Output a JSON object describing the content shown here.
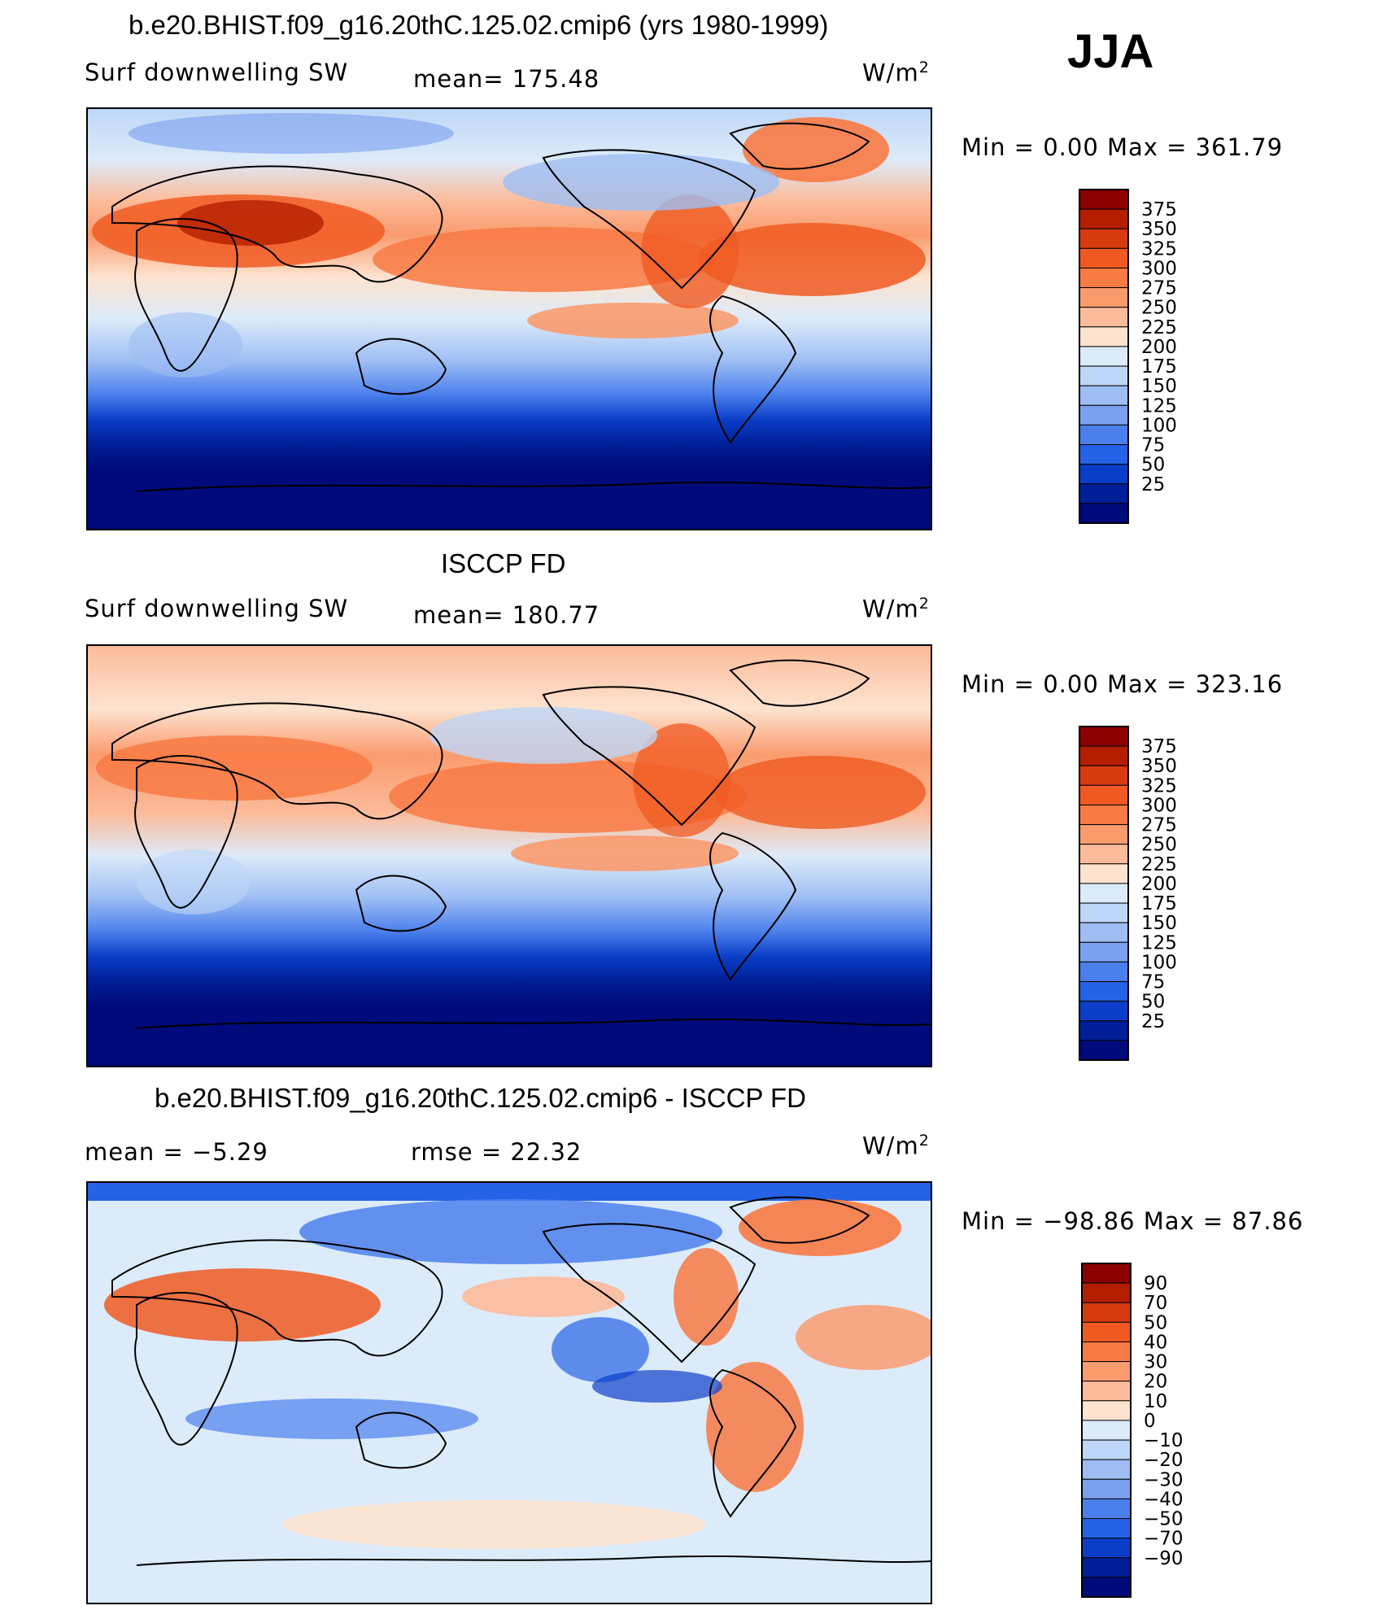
{
  "season": "JJA",
  "units": "W/m²",
  "panels": [
    {
      "id": "model",
      "title": "b.e20.BHIST.f09_g16.20thC.125.02.cmip6 (yrs 1980-1999)",
      "left_label": "Surf  downwelling  SW",
      "center_label": "mean=  175.48",
      "units": "W/m²",
      "minmax": "Min  =     0.00  Max  =  361.79",
      "colorbar_ticks": [
        "375",
        "350",
        "325",
        "300",
        "275",
        "250",
        "225",
        "200",
        "175",
        "150",
        "125",
        "100",
        "75",
        "50",
        "25"
      ],
      "colors": [
        "#8b0000",
        "#b41e00",
        "#d63a0e",
        "#f05a22",
        "#f87a44",
        "#fa9b6e",
        "#fcbb9b",
        "#fde3cf",
        "#dcebfa",
        "#bed6f7",
        "#9ebef3",
        "#7aa0ee",
        "#4b80ec",
        "#2662e6",
        "#0b3ec8",
        "#001e96",
        "#000a7a"
      ]
    },
    {
      "id": "obs",
      "title": "ISCCP FD",
      "left_label": "Surf  downwelling  SW",
      "center_label": "mean=  180.77",
      "units": "W/m²",
      "minmax": "Min  =     0.00  Max  =  323.16",
      "colorbar_ticks": [
        "375",
        "350",
        "325",
        "300",
        "275",
        "250",
        "225",
        "200",
        "175",
        "150",
        "125",
        "100",
        "75",
        "50",
        "25"
      ],
      "colors": [
        "#8b0000",
        "#b41e00",
        "#d63a0e",
        "#f05a22",
        "#f87a44",
        "#fa9b6e",
        "#fcbb9b",
        "#fde3cf",
        "#dcebfa",
        "#bed6f7",
        "#9ebef3",
        "#7aa0ee",
        "#4b80ec",
        "#2662e6",
        "#0b3ec8",
        "#001e96",
        "#000a7a"
      ]
    },
    {
      "id": "diff",
      "title": "b.e20.BHIST.f09_g16.20thC.125.02.cmip6 - ISCCP FD",
      "left_label": "mean  =     −5.29",
      "center_label": "rmse  =     22.32",
      "units": "W/m²",
      "minmax": "Min  = −98.86  Max  =    87.86",
      "colorbar_ticks": [
        "90",
        "70",
        "50",
        "40",
        "30",
        "20",
        "10",
        "0",
        "−10",
        "−20",
        "−30",
        "−40",
        "−50",
        "−70",
        "−90"
      ],
      "colors": [
        "#8b0000",
        "#b41e00",
        "#d63a0e",
        "#f05a22",
        "#f87a44",
        "#fa9b6e",
        "#fcbb9b",
        "#fde3cf",
        "#dcebfa",
        "#bed6f7",
        "#9ebef3",
        "#7aa0ee",
        "#4b80ec",
        "#2662e6",
        "#0b3ec8",
        "#001e96",
        "#000a7a"
      ]
    }
  ],
  "chart_data": [
    {
      "type": "heatmap",
      "title": "b.e20.BHIST.f09_g16.20thC.125.02.cmip6 (yrs 1980-1999)",
      "variable": "Surf downwelling SW",
      "units": "W/m2",
      "mean": 175.48,
      "min": 0.0,
      "max": 361.79,
      "levels": [
        25,
        50,
        75,
        100,
        125,
        150,
        175,
        200,
        225,
        250,
        275,
        300,
        325,
        350,
        375
      ]
    },
    {
      "type": "heatmap",
      "title": "ISCCP FD",
      "variable": "Surf downwelling SW",
      "units": "W/m2",
      "mean": 180.77,
      "min": 0.0,
      "max": 323.16,
      "levels": [
        25,
        50,
        75,
        100,
        125,
        150,
        175,
        200,
        225,
        250,
        275,
        300,
        325,
        350,
        375
      ]
    },
    {
      "type": "heatmap",
      "title": "b.e20.BHIST.f09_g16.20thC.125.02.cmip6 - ISCCP FD",
      "units": "W/m2",
      "mean": -5.29,
      "rmse": 22.32,
      "min": -98.86,
      "max": 87.86,
      "levels": [
        -90,
        -70,
        -50,
        -40,
        -30,
        -20,
        -10,
        0,
        10,
        20,
        30,
        40,
        50,
        70,
        90
      ]
    }
  ]
}
